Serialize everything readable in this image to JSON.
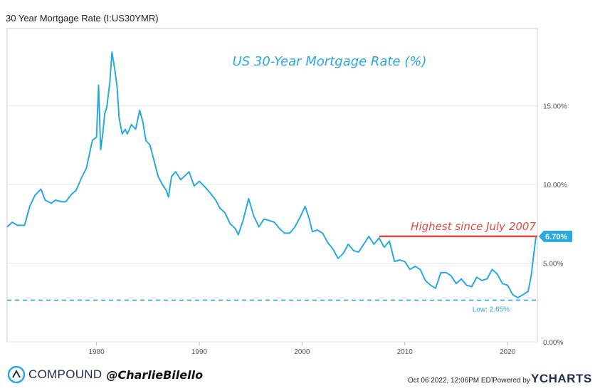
{
  "header": {
    "title": "30 Year Mortgage Rate (I:US30YMR)"
  },
  "footer": {
    "brand": "COMPOUND",
    "handle": "@CharlieBilello",
    "timestamp": "Oct 06 2022, 12:06PM EDT.",
    "powered_by": "Powered by",
    "provider": "YCHARTS"
  },
  "colors": {
    "line": "#29a9e1",
    "highlight": "#e8473d",
    "title": "#29a9e1",
    "grid": "#e6e6e6"
  },
  "chart_data": {
    "type": "line",
    "title": "US 30-Year Mortgage Rate (%)",
    "y_tick_labels": [
      "0.00%",
      "5.00%",
      "10.00%",
      "15.00%"
    ],
    "y_ticks": [
      0,
      5,
      10,
      15
    ],
    "x_tick_labels": [
      "1980",
      "1990",
      "2000",
      "2010",
      "2020"
    ],
    "x_ticks": [
      1980,
      1990,
      2000,
      2010,
      2020
    ],
    "xlim": [
      1971.3,
      2022.9
    ],
    "ylim": [
      0,
      19.9
    ],
    "grid": true,
    "series": [
      {
        "x": [
          1971.3,
          1971.8,
          1972.3,
          1973.0,
          1973.5,
          1974.0,
          1974.6,
          1975.0,
          1975.6,
          1976.0,
          1976.6,
          1977.0,
          1977.6,
          1978.0,
          1978.6,
          1979.0,
          1979.6,
          1980.0,
          1980.2,
          1980.4,
          1980.6,
          1980.8,
          1981.0,
          1981.3,
          1981.5,
          1981.8,
          1982.0,
          1982.2,
          1982.5,
          1982.8,
          1983.0,
          1983.4,
          1983.8,
          1984.2,
          1984.5,
          1984.8,
          1985.2,
          1985.6,
          1986.0,
          1986.4,
          1986.8,
          1987.0,
          1987.3,
          1987.7,
          1988.2,
          1988.7,
          1989.0,
          1989.5,
          1990.0,
          1990.6,
          1991.0,
          1991.6,
          1992.0,
          1992.5,
          1993.0,
          1993.5,
          1993.8,
          1994.3,
          1994.8,
          1995.3,
          1995.8,
          1996.3,
          1996.8,
          1997.3,
          1997.8,
          1998.3,
          1998.8,
          1999.3,
          1999.8,
          2000.3,
          2000.7,
          2001.0,
          2001.5,
          2002.0,
          2002.5,
          2003.0,
          2003.5,
          2004.0,
          2004.5,
          2005.0,
          2005.5,
          2006.0,
          2006.5,
          2007.0,
          2007.5,
          2008.0,
          2008.5,
          2009.0,
          2009.5,
          2010.0,
          2010.5,
          2011.0,
          2011.5,
          2012.0,
          2012.5,
          2013.0,
          2013.5,
          2014.0,
          2014.5,
          2015.0,
          2015.5,
          2016.0,
          2016.5,
          2017.0,
          2017.5,
          2018.0,
          2018.5,
          2019.0,
          2019.5,
          2020.0,
          2020.5,
          2021.0,
          2021.5,
          2022.0,
          2022.3,
          2022.5,
          2022.77
        ],
        "y": [
          7.3,
          7.6,
          7.4,
          7.4,
          8.6,
          9.3,
          9.7,
          9.0,
          8.8,
          9.0,
          8.9,
          8.9,
          9.4,
          9.6,
          10.5,
          11.0,
          12.8,
          13.0,
          16.3,
          12.2,
          13.2,
          14.5,
          14.9,
          16.5,
          18.4,
          17.2,
          16.2,
          14.2,
          13.2,
          13.5,
          13.2,
          13.8,
          13.5,
          14.7,
          14.0,
          12.8,
          12.5,
          11.5,
          10.5,
          10.0,
          9.6,
          9.2,
          10.5,
          10.8,
          10.3,
          10.6,
          10.8,
          9.9,
          10.2,
          9.8,
          9.5,
          9.0,
          8.5,
          8.2,
          7.5,
          7.2,
          6.8,
          7.8,
          9.1,
          8.0,
          7.3,
          7.8,
          7.7,
          7.6,
          7.2,
          6.9,
          6.9,
          7.3,
          7.9,
          8.6,
          7.8,
          7.0,
          7.1,
          6.9,
          6.3,
          5.9,
          5.3,
          5.6,
          6.2,
          5.8,
          5.7,
          6.2,
          6.7,
          6.2,
          6.6,
          6.0,
          6.4,
          5.1,
          5.2,
          5.1,
          4.6,
          4.8,
          4.6,
          3.9,
          3.6,
          3.4,
          4.4,
          4.4,
          4.2,
          3.7,
          4.0,
          3.6,
          3.5,
          4.1,
          3.9,
          4.0,
          4.6,
          4.3,
          3.7,
          3.6,
          3.0,
          2.8,
          3.0,
          3.2,
          4.2,
          5.3,
          6.7
        ]
      }
    ],
    "annotations": {
      "highlight_label": "Highest since July 2007",
      "highlight_start_x": 2007.5,
      "current_value": 6.7,
      "current_label": "6.70%",
      "low_value": 2.65,
      "low_label": "Low: 2.65%"
    }
  }
}
